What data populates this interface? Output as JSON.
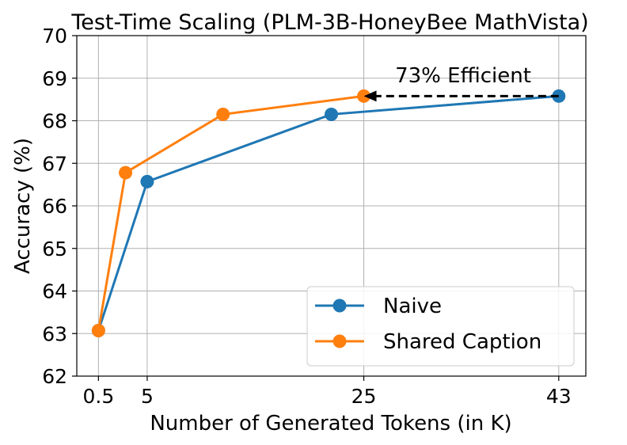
{
  "chart_data": {
    "type": "line",
    "title": "Test-Time Scaling (PLM-3B-HoneyBee MathVista)",
    "xlabel": "Number of Generated Tokens (in K)",
    "ylabel": "Accuracy (%)",
    "xticks": [
      0.5,
      5,
      25,
      43
    ],
    "xtick_labels": [
      "0.5",
      "5",
      "25",
      "43"
    ],
    "yticks": [
      62,
      63,
      64,
      65,
      66,
      67,
      68,
      69,
      70
    ],
    "yticks_labels": [
      "62",
      "63",
      "64",
      "65",
      "66",
      "67",
      "68",
      "69",
      "70"
    ],
    "xlim": [
      -1.5,
      45.5
    ],
    "ylim": [
      62,
      70
    ],
    "grid": true,
    "legend_position": "lower-right",
    "series": [
      {
        "name": "Naive",
        "color": "#1f77b4",
        "x": [
          0.5,
          5,
          22,
          43
        ],
        "y": [
          63.07,
          66.57,
          68.15,
          68.58
        ]
      },
      {
        "name": "Shared Caption",
        "color": "#ff7f0e",
        "x": [
          0.5,
          3,
          12,
          25
        ],
        "y": [
          63.07,
          66.78,
          68.15,
          68.58
        ]
      }
    ],
    "annotation": {
      "text": "73% Efficient",
      "arrow_from": {
        "x": 43,
        "y": 68.58
      },
      "arrow_to": {
        "x": 25,
        "y": 68.58
      },
      "style": "dashed-arrow"
    }
  }
}
